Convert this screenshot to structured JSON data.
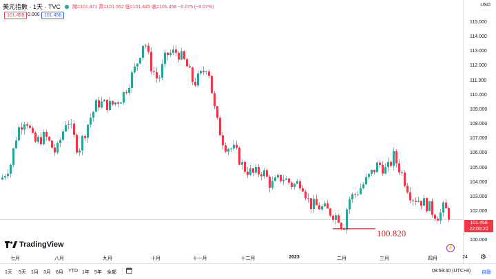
{
  "legend": {
    "symbol": "美元指數 · 1天 · TVC",
    "ohlc": "開=101.471  高=101.552  低=101.445  收=101.458  −0.075 (−0.07%)"
  },
  "price_boxes": {
    "left": "101.458",
    "vol": "0.000",
    "right": "101.458"
  },
  "currency": "USD",
  "y_ticks": [
    "115.000",
    "114.000",
    "113.000",
    "112.000",
    "111.000",
    "110.000",
    "109.000",
    "108.000",
    "107.000",
    "106.000",
    "105.000",
    "104.000",
    "103.000",
    "102.000",
    "100.000"
  ],
  "x_ticks": [
    "七月",
    "八月",
    "九月",
    "十月",
    "十一月",
    "十二月",
    "2023",
    "二月",
    "三月",
    "四月",
    "24"
  ],
  "current_price": {
    "price": "101.458",
    "countdown": "22:00:20"
  },
  "annotation": "100.820",
  "brand": "TradingView",
  "bottom": {
    "timeframes": [
      "1天",
      "5天",
      "1月",
      "3月",
      "6月",
      "YTD",
      "1年",
      "5年",
      "全部"
    ],
    "clock": "08:59:40 (UTC+8)",
    "auto": "自動"
  },
  "colors": {
    "up": "#26a69a",
    "down": "#f23645",
    "annotation": "#c62828",
    "accent": "#2962ff"
  },
  "icons": {
    "logo": "tradingview-logo-icon",
    "calendar": "calendar-icon",
    "settings": "gear-icon",
    "bolt": "lightning-icon"
  },
  "chart_data": {
    "type": "candlestick",
    "ylim": [
      100,
      115.5
    ],
    "trend_anchors": [
      [
        0,
        104.2
      ],
      [
        14,
        105.3
      ],
      [
        24,
        107.6
      ],
      [
        36,
        108.5
      ],
      [
        48,
        106.7
      ],
      [
        64,
        107.2
      ],
      [
        80,
        106.0
      ],
      [
        96,
        108.5
      ],
      [
        112,
        106.2
      ],
      [
        128,
        108.3
      ],
      [
        140,
        109.5
      ],
      [
        160,
        109.3
      ],
      [
        176,
        109.9
      ],
      [
        196,
        112.0
      ],
      [
        208,
        113.9
      ],
      [
        216,
        112.2
      ],
      [
        228,
        111.0
      ],
      [
        240,
        112.8
      ],
      [
        256,
        113.0
      ],
      [
        268,
        112.2
      ],
      [
        280,
        110.8
      ],
      [
        292,
        111.5
      ],
      [
        300,
        112.2
      ],
      [
        312,
        108.4
      ],
      [
        324,
        106.6
      ],
      [
        340,
        106.2
      ],
      [
        352,
        105.0
      ],
      [
        366,
        104.6
      ],
      [
        380,
        104.8
      ],
      [
        392,
        103.8
      ],
      [
        408,
        104.4
      ],
      [
        424,
        103.8
      ],
      [
        436,
        104.1
      ],
      [
        448,
        102.5
      ],
      [
        464,
        102.3
      ],
      [
        480,
        101.9
      ],
      [
        490,
        101.6
      ],
      [
        497,
        100.82
      ],
      [
        504,
        102.8
      ],
      [
        516,
        103.3
      ],
      [
        528,
        104.0
      ],
      [
        548,
        105.3
      ],
      [
        560,
        104.8
      ],
      [
        570,
        105.8
      ],
      [
        582,
        104.6
      ],
      [
        596,
        103.0
      ],
      [
        608,
        102.8
      ],
      [
        620,
        102.4
      ],
      [
        628,
        101.9
      ],
      [
        636,
        101.7
      ],
      [
        644,
        102.4
      ],
      [
        650,
        101.46
      ]
    ],
    "annotation_level": 100.82,
    "last_price": 101.458
  }
}
